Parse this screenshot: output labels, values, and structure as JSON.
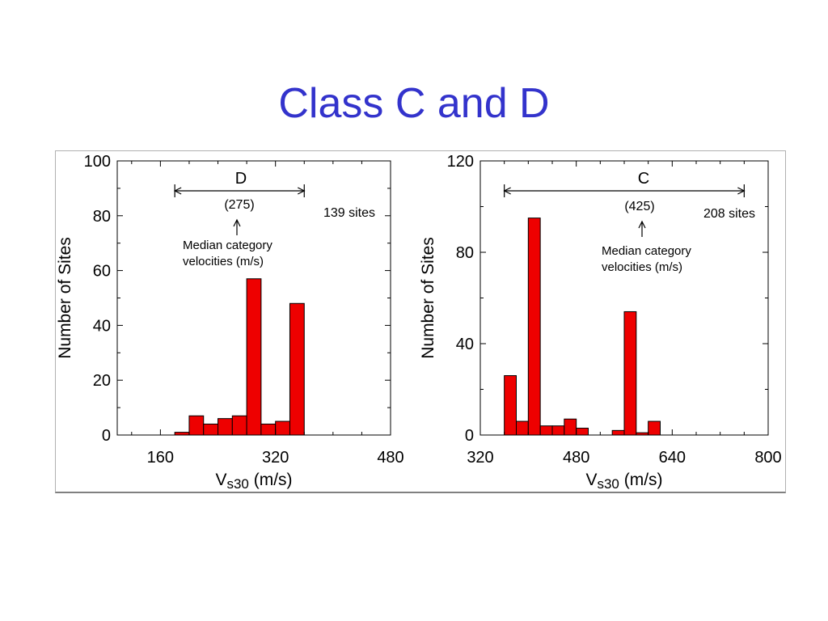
{
  "slide": {
    "title": "Class C and D"
  },
  "chart_data": [
    {
      "type": "bar",
      "ylabel": "Number of Sites",
      "xlabel": "Vs30 (m/s)",
      "xlabel_main": "V",
      "xlabel_sub": "S30",
      "xlabel_unit": "(m/s)",
      "xlim": [
        100,
        480
      ],
      "ylim": [
        0,
        100
      ],
      "xticks": [
        160,
        320,
        480
      ],
      "yticks": [
        0,
        20,
        40,
        60,
        80,
        100
      ],
      "bin_width": 20,
      "bins": [
        {
          "x0": 180,
          "value": 1
        },
        {
          "x0": 200,
          "value": 7
        },
        {
          "x0": 220,
          "value": 4
        },
        {
          "x0": 240,
          "value": 6
        },
        {
          "x0": 260,
          "value": 7
        },
        {
          "x0": 280,
          "value": 57
        },
        {
          "x0": 300,
          "value": 4
        },
        {
          "x0": 320,
          "value": 5
        },
        {
          "x0": 340,
          "value": 48
        }
      ],
      "bar_color": "#ee0000",
      "range_label": "D",
      "range": [
        180,
        360
      ],
      "median_label": "(275)",
      "median_value": 275,
      "note_line1": "Median category",
      "note_line2": "velocities (m/s)",
      "site_count": "139 sites",
      "grid": false
    },
    {
      "type": "bar",
      "ylabel": "Number of Sites",
      "xlabel": "Vs30 (m/s)",
      "xlabel_main": "V",
      "xlabel_sub": "S30",
      "xlabel_unit": "(m/s)",
      "xlim": [
        320,
        800
      ],
      "ylim": [
        0,
        120
      ],
      "xticks": [
        320,
        480,
        640,
        800
      ],
      "yticks": [
        0,
        40,
        80,
        120
      ],
      "bin_width": 20,
      "bins": [
        {
          "x0": 360,
          "value": 26
        },
        {
          "x0": 380,
          "value": 6
        },
        {
          "x0": 400,
          "value": 95
        },
        {
          "x0": 420,
          "value": 4
        },
        {
          "x0": 440,
          "value": 4
        },
        {
          "x0": 460,
          "value": 7
        },
        {
          "x0": 480,
          "value": 3
        },
        {
          "x0": 540,
          "value": 2
        },
        {
          "x0": 560,
          "value": 54
        },
        {
          "x0": 580,
          "value": 1
        },
        {
          "x0": 600,
          "value": 6
        }
      ],
      "bar_color": "#ee0000",
      "range_label": "C",
      "range": [
        360,
        760
      ],
      "median_label": "(425)",
      "median_value": 425,
      "note_line1": "Median category",
      "note_line2": "velocities (m/s)",
      "site_count": "208 sites",
      "grid": false
    }
  ]
}
